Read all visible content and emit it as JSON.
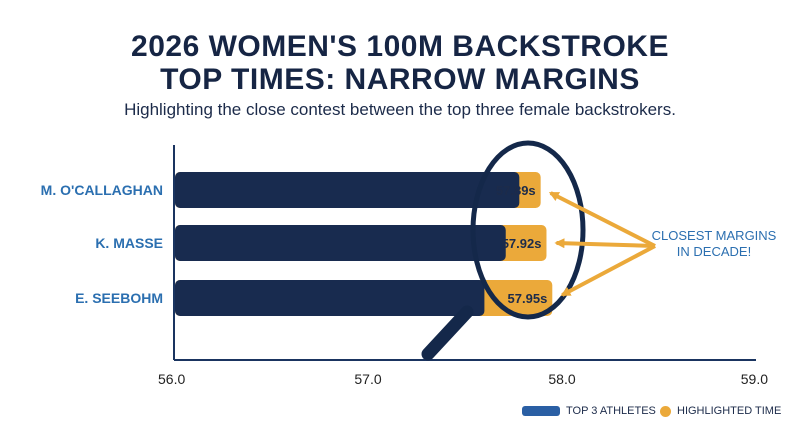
{
  "title_line1": "2026 WOMEN'S 100M BACKSTROKE",
  "title_line2": "TOP TIMES: NARROW MARGINS",
  "subtitle": "Highlighting the close contest between the top three female backstrokers.",
  "colors": {
    "bar": "#182b4f",
    "highlight": "#eba93a",
    "axis": "#1a3460",
    "label": "#2b6fb0",
    "magnifier": "#14284a",
    "legend_bar": "#2a5fa4"
  },
  "chart_data": {
    "type": "bar",
    "orientation": "horizontal",
    "categories": [
      "M. O'CALLAGHAN",
      "K. MASSE",
      "E. SEEBOHM"
    ],
    "values": [
      57.89,
      57.92,
      57.95
    ],
    "value_labels": [
      "57.89s",
      "57.92s",
      "57.95s"
    ],
    "highlight_start": 57.5,
    "xlim": [
      56.0,
      59.0
    ],
    "xticks": [
      56.0,
      57.0,
      58.0,
      59.0
    ],
    "xtick_labels": [
      "56.0",
      "57.0",
      "58.0",
      "59.0"
    ],
    "title": "2026 WOMEN'S 100M BACKSTROKE TOP TIMES: NARROW MARGINS",
    "annotation": [
      "CLOSEST MARGINS",
      "IN DECADE!"
    ],
    "legend": [
      "TOP 3 ATHLETES",
      "HIGHLIGHTED TIME"
    ],
    "legend_position": "bottom-right"
  }
}
